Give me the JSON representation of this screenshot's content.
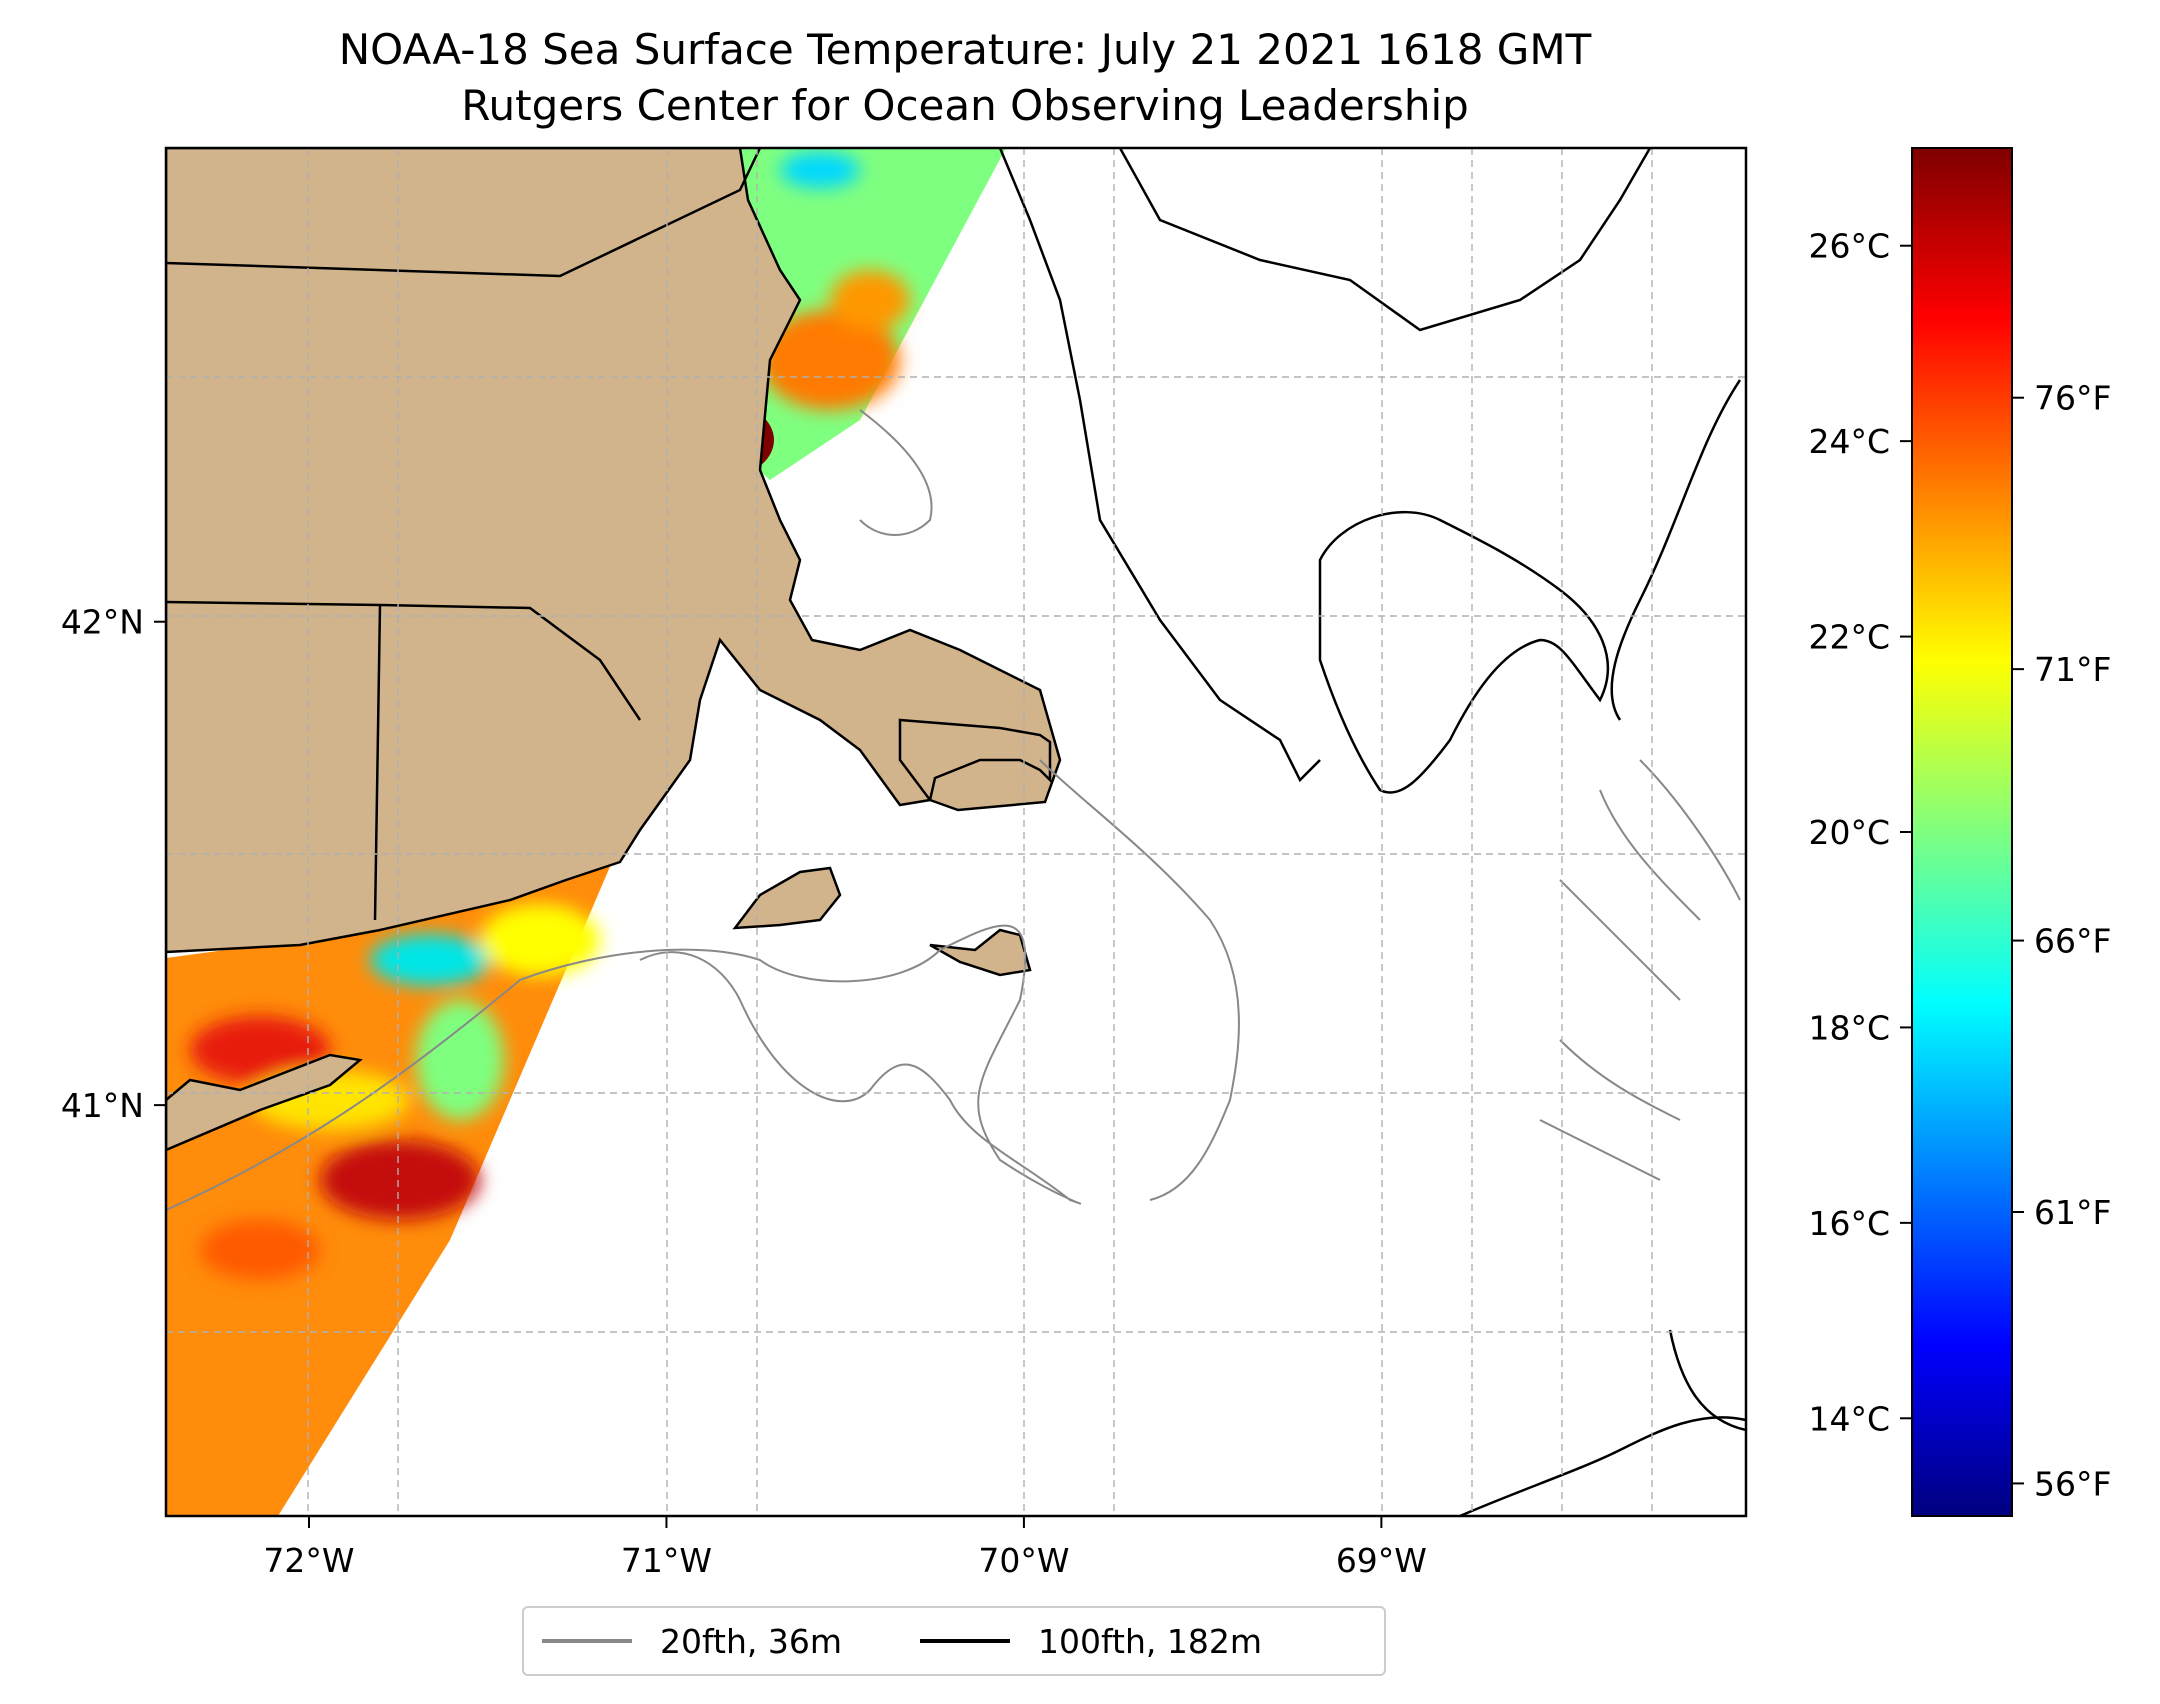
{
  "title": {
    "line1": "NOAA-18 Sea Surface Temperature: July 21 2021 1618 GMT",
    "line2": "Rutgers Center for Ocean Observing Leadership"
  },
  "chart_data": {
    "type": "heatmap",
    "title": "NOAA-18 Sea Surface Temperature: July 21 2021 1618 GMT",
    "subtitle": "Rutgers Center for Ocean Observing Leadership",
    "x_range_lon": [
      -72.4,
      -67.98
    ],
    "y_range_lat": [
      40.15,
      42.98
    ],
    "x_ticks": [
      -72,
      -71,
      -70,
      -69
    ],
    "x_tick_labels": [
      "72°W",
      "71°W",
      "70°W",
      "69°W"
    ],
    "y_ticks": [
      41,
      42
    ],
    "y_tick_labels": [
      "41°N",
      "42°N"
    ],
    "grid": true,
    "colorbar": {
      "colormap": "jet",
      "range_c": [
        13,
        27
      ],
      "celsius_ticks": [
        14,
        16,
        18,
        20,
        22,
        24,
        26
      ],
      "celsius_labels": [
        "14°C",
        "16°C",
        "18°C",
        "20°C",
        "22°C",
        "24°C",
        "26°C"
      ],
      "fahrenheit_ticks": [
        56,
        61,
        66,
        71,
        76
      ],
      "fahrenheit_labels": [
        "56°F",
        "61°F",
        "66°F",
        "71°F",
        "76°F"
      ]
    },
    "legend": {
      "placement": "bottom-center",
      "entries": [
        {
          "label": "20fth, 36m",
          "color": "#888888"
        },
        {
          "label": "100fth, 182m",
          "color": "#000000"
        }
      ]
    },
    "colors": {
      "land": "#d2b48c",
      "isobath20": "#888888",
      "isobath100": "#000000",
      "grid": "#b0b0b0"
    }
  }
}
